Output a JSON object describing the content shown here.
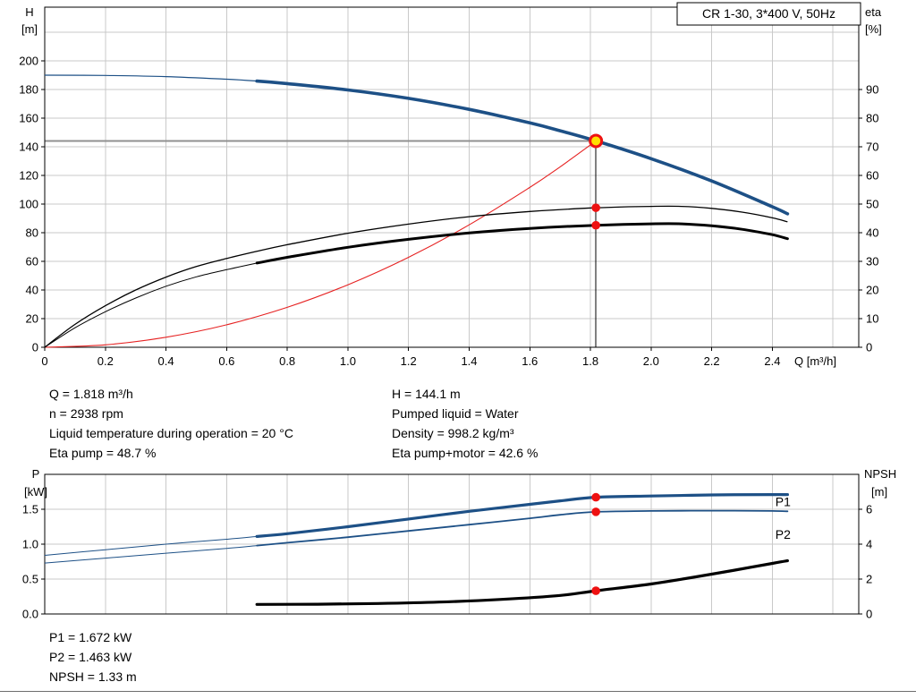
{
  "colors": {
    "blue": "#1d5086",
    "black": "#000000",
    "red": "#e62222",
    "grid": "#c9c9c9",
    "gray_line": "#909090",
    "dot_red": "#ee1111",
    "marker_fill": "#ffdf00",
    "border": "#000000"
  },
  "info_mid": {
    "left": [
      "Q = 1.818 m³/h",
      "n = 2938 rpm",
      "Liquid temperature during operation = 20 °C",
      "Eta pump = 48.7 %"
    ],
    "right": [
      "H = 144.1 m",
      "Pumped liquid = Water",
      "Density = 998.2 kg/m³",
      "Eta pump+motor = 42.6 %"
    ]
  },
  "info_bottom": [
    "P1 = 1.672 kW",
    "P2 = 1.463 kW",
    "NPSH = 1.33 m"
  ],
  "chart_data": [
    {
      "type": "line",
      "id": "qh-eta-chart",
      "title": "CR 1-30, 3*400 V, 50Hz",
      "x": {
        "label": "Q [m³/h]",
        "min": 0,
        "max": 2.685,
        "ticks": [
          0,
          0.2,
          0.4,
          0.6,
          0.8,
          1,
          1.2,
          1.4,
          1.6,
          1.8,
          2,
          2.2,
          2.4
        ],
        "tick_labels": [
          "0",
          "0.2",
          "0.4",
          "0.6",
          "0.8",
          "1.0",
          "1.2",
          "1.4",
          "1.6",
          "1.8",
          "2.0",
          "2.2",
          "2.4"
        ],
        "grid": [
          0.2,
          0.4,
          0.6,
          0.8,
          1,
          1.2,
          1.4,
          1.6,
          1.8,
          2,
          2.2,
          2.4,
          2.6
        ]
      },
      "y_left": {
        "label": "H",
        "unit": "[m]",
        "min": 0,
        "max": 237.5,
        "ticks": [
          0,
          20,
          40,
          60,
          80,
          100,
          120,
          140,
          160,
          180,
          200
        ],
        "grid": [
          20,
          40,
          60,
          80,
          100,
          120,
          140,
          160,
          180,
          200,
          220
        ]
      },
      "y_right": {
        "label": "eta",
        "unit": "[%]",
        "min": 0,
        "max": 118.75,
        "ticks": [
          0,
          10,
          20,
          30,
          40,
          50,
          60,
          70,
          80,
          90
        ]
      },
      "series": [
        {
          "id": "system-curve",
          "axis": "left",
          "color": "red",
          "width": 1.1,
          "points": [
            [
              0,
              0
            ],
            [
              0.2,
              1.7
            ],
            [
              0.4,
              7
            ],
            [
              0.6,
              15.7
            ],
            [
              0.8,
              27.9
            ],
            [
              1,
              43.6
            ],
            [
              1.2,
              62.8
            ],
            [
              1.4,
              85.5
            ],
            [
              1.6,
              111.6
            ],
            [
              1.7,
              126
            ],
            [
              1.818,
              144.1
            ]
          ]
        },
        {
          "id": "eta-pump",
          "axis": "right",
          "color": "black",
          "width": 1.3,
          "points": [
            [
              0,
              0
            ],
            [
              0.1,
              8
            ],
            [
              0.2,
              14.5
            ],
            [
              0.3,
              20
            ],
            [
              0.4,
              24.5
            ],
            [
              0.5,
              28.2
            ],
            [
              0.6,
              31
            ],
            [
              0.7,
              33.5
            ],
            [
              0.8,
              35.8
            ],
            [
              1,
              39.8
            ],
            [
              1.2,
              43
            ],
            [
              1.4,
              45.6
            ],
            [
              1.6,
              47.4
            ],
            [
              1.818,
              48.7
            ],
            [
              2,
              49.2
            ],
            [
              2.1,
              49.2
            ],
            [
              2.2,
              48.5
            ],
            [
              2.3,
              47.2
            ],
            [
              2.4,
              45.2
            ],
            [
              2.45,
              43.8
            ]
          ]
        },
        {
          "id": "eta-pump-motor",
          "axis": "right",
          "color": "black",
          "width": 1,
          "thick_width": 3,
          "thick_from": 0.7,
          "points": [
            [
              0,
              0
            ],
            [
              0.1,
              6.8
            ],
            [
              0.2,
              12.4
            ],
            [
              0.3,
              17.2
            ],
            [
              0.4,
              21.3
            ],
            [
              0.5,
              24.6
            ],
            [
              0.6,
              27.1
            ],
            [
              0.7,
              29.4
            ],
            [
              0.8,
              31.4
            ],
            [
              1,
              34.9
            ],
            [
              1.2,
              37.7
            ],
            [
              1.4,
              39.9
            ],
            [
              1.6,
              41.5
            ],
            [
              1.818,
              42.6
            ],
            [
              2,
              43.1
            ],
            [
              2.1,
              43.1
            ],
            [
              2.2,
              42.4
            ],
            [
              2.3,
              41.2
            ],
            [
              2.4,
              39.3
            ],
            [
              2.45,
              37.9
            ]
          ]
        },
        {
          "id": "head",
          "axis": "left",
          "color": "blue",
          "width": 1.2,
          "thick_width": 3.6,
          "thick_from": 0.7,
          "points": [
            [
              0,
              190
            ],
            [
              0.2,
              189.8
            ],
            [
              0.4,
              189
            ],
            [
              0.6,
              187.2
            ],
            [
              0.7,
              185.9
            ],
            [
              0.8,
              184.1
            ],
            [
              1,
              179.7
            ],
            [
              1.2,
              173.8
            ],
            [
              1.4,
              166.1
            ],
            [
              1.6,
              156.7
            ],
            [
              1.7,
              151.2
            ],
            [
              1.818,
              144.1
            ],
            [
              2,
              131.7
            ],
            [
              2.2,
              116.1
            ],
            [
              2.4,
              98.1
            ],
            [
              2.45,
              93.2
            ]
          ]
        }
      ],
      "duty": {
        "q": 1.818,
        "h": 144.1
      },
      "dots": [
        {
          "q": 1.818,
          "v": 48.7,
          "axis": "right"
        },
        {
          "q": 1.818,
          "v": 42.6,
          "axis": "right"
        }
      ]
    },
    {
      "type": "line",
      "id": "power-npsh-chart",
      "x": {
        "label": "",
        "min": 0,
        "max": 2.685,
        "ticks": [],
        "tick_labels": [],
        "grid": [
          0.2,
          0.4,
          0.6,
          0.8,
          1,
          1.2,
          1.4,
          1.6,
          1.8,
          2,
          2.2,
          2.4,
          2.6
        ]
      },
      "y_left": {
        "label": "P",
        "unit": "[kW]",
        "min": 0,
        "max": 2,
        "ticks": [
          0,
          0.5,
          1,
          1.5
        ],
        "tick_labels": [
          "0.0",
          "0.5",
          "1.0",
          "1.5"
        ],
        "grid": [
          0.5,
          1,
          1.5
        ]
      },
      "y_right": {
        "label": "NPSH",
        "unit": "[m]",
        "unit_dx": 8,
        "min": 0,
        "max": 8,
        "ticks": [
          0,
          2,
          4,
          6
        ]
      },
      "series": [
        {
          "id": "p1",
          "axis": "left",
          "color": "blue",
          "width": 1,
          "thick_width": 3.2,
          "thick_from": 0.7,
          "points": [
            [
              0,
              0.84
            ],
            [
              0.2,
              0.92
            ],
            [
              0.4,
              1
            ],
            [
              0.6,
              1.07
            ],
            [
              0.7,
              1.11
            ],
            [
              0.8,
              1.15
            ],
            [
              1,
              1.25
            ],
            [
              1.2,
              1.36
            ],
            [
              1.4,
              1.47
            ],
            [
              1.6,
              1.57
            ],
            [
              1.7,
              1.62
            ],
            [
              1.818,
              1.672
            ],
            [
              2,
              1.69
            ],
            [
              2.2,
              1.705
            ],
            [
              2.4,
              1.71
            ],
            [
              2.45,
              1.71
            ]
          ]
        },
        {
          "id": "p2",
          "axis": "left",
          "color": "blue",
          "width": 1,
          "thick_width": 1.8,
          "thick_from": 0.7,
          "points": [
            [
              0,
              0.73
            ],
            [
              0.2,
              0.8
            ],
            [
              0.4,
              0.87
            ],
            [
              0.6,
              0.94
            ],
            [
              0.7,
              0.98
            ],
            [
              0.8,
              1.02
            ],
            [
              1,
              1.1
            ],
            [
              1.2,
              1.19
            ],
            [
              1.4,
              1.28
            ],
            [
              1.6,
              1.37
            ],
            [
              1.7,
              1.42
            ],
            [
              1.818,
              1.463
            ],
            [
              2,
              1.475
            ],
            [
              2.2,
              1.48
            ],
            [
              2.4,
              1.475
            ],
            [
              2.45,
              1.47
            ]
          ]
        },
        {
          "id": "npsh",
          "axis": "right",
          "color": "black",
          "width": 1,
          "thick_width": 3.2,
          "thick_from": 0.7,
          "points": [
            [
              0.7,
              0.55
            ],
            [
              0.9,
              0.56
            ],
            [
              1.1,
              0.6
            ],
            [
              1.3,
              0.68
            ],
            [
              1.5,
              0.83
            ],
            [
              1.7,
              1.06
            ],
            [
              1.818,
              1.33
            ],
            [
              2,
              1.72
            ],
            [
              2.2,
              2.28
            ],
            [
              2.4,
              2.9
            ],
            [
              2.45,
              3.05
            ]
          ]
        }
      ],
      "dots": [
        {
          "q": 1.818,
          "v": 1.672,
          "axis": "left"
        },
        {
          "q": 1.818,
          "v": 1.463,
          "axis": "left"
        },
        {
          "q": 1.818,
          "v": 1.33,
          "axis": "right"
        }
      ],
      "series_labels": [
        {
          "text": "P1",
          "q": 2.41,
          "v": 1.61,
          "color": "blue"
        },
        {
          "text": "P2",
          "q": 2.41,
          "v": 1.14,
          "color": "blue"
        }
      ]
    }
  ]
}
